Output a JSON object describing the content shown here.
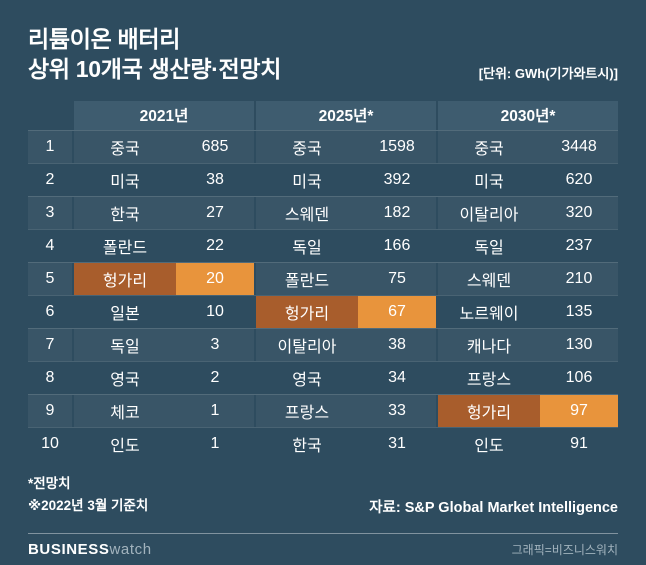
{
  "header": {
    "title_line1": "리튬이온 배터리",
    "title_line2": "상위 10개국 생산량·전망치",
    "unit_label": "[단위: GWh(기가와트시)]"
  },
  "chart_data": {
    "type": "table",
    "title": "리튬이온 배터리 상위 10개국 생산량·전망치",
    "unit": "GWh(기가와트시)",
    "column_groups": [
      "2021년",
      "2025년*",
      "2030년*"
    ],
    "rows": [
      {
        "rank": "1",
        "cols": [
          {
            "country": "중국",
            "value": 685
          },
          {
            "country": "중국",
            "value": 1598
          },
          {
            "country": "중국",
            "value": 3448
          }
        ]
      },
      {
        "rank": "2",
        "cols": [
          {
            "country": "미국",
            "value": 38
          },
          {
            "country": "미국",
            "value": 392
          },
          {
            "country": "미국",
            "value": 620
          }
        ]
      },
      {
        "rank": "3",
        "cols": [
          {
            "country": "한국",
            "value": 27
          },
          {
            "country": "스웨덴",
            "value": 182
          },
          {
            "country": "이탈리아",
            "value": 320
          }
        ]
      },
      {
        "rank": "4",
        "cols": [
          {
            "country": "폴란드",
            "value": 22
          },
          {
            "country": "독일",
            "value": 166
          },
          {
            "country": "독일",
            "value": 237
          }
        ]
      },
      {
        "rank": "5",
        "cols": [
          {
            "country": "헝가리",
            "value": 20,
            "highlight": true
          },
          {
            "country": "폴란드",
            "value": 75
          },
          {
            "country": "스웨덴",
            "value": 210
          }
        ]
      },
      {
        "rank": "6",
        "cols": [
          {
            "country": "일본",
            "value": 10
          },
          {
            "country": "헝가리",
            "value": 67,
            "highlight": true
          },
          {
            "country": "노르웨이",
            "value": 135
          }
        ]
      },
      {
        "rank": "7",
        "cols": [
          {
            "country": "독일",
            "value": 3
          },
          {
            "country": "이탈리아",
            "value": 38
          },
          {
            "country": "캐나다",
            "value": 130
          }
        ]
      },
      {
        "rank": "8",
        "cols": [
          {
            "country": "영국",
            "value": 2
          },
          {
            "country": "영국",
            "value": 34
          },
          {
            "country": "프랑스",
            "value": 106
          }
        ]
      },
      {
        "rank": "9",
        "cols": [
          {
            "country": "체코",
            "value": 1
          },
          {
            "country": "프랑스",
            "value": 33
          },
          {
            "country": "헝가리",
            "value": 97,
            "highlight": true
          }
        ]
      },
      {
        "rank": "10",
        "cols": [
          {
            "country": "인도",
            "value": 1
          },
          {
            "country": "한국",
            "value": 31
          },
          {
            "country": "인도",
            "value": 91
          }
        ]
      }
    ]
  },
  "footnotes": [
    "*전망치",
    "※2022년 3월 기준치"
  ],
  "source": "자료: S&P Global Market Intelligence",
  "footer": {
    "brand_bold": "BUSINESS",
    "brand_light": "watch",
    "credit": "그래픽=비즈니스워치"
  },
  "colors": {
    "background": "#2e4c5f",
    "header_band": "#3e5c6f",
    "highlight_country": "#a85d2c",
    "highlight_value": "#e8943c",
    "text": "#ffffff",
    "muted": "#a2b3bd"
  }
}
